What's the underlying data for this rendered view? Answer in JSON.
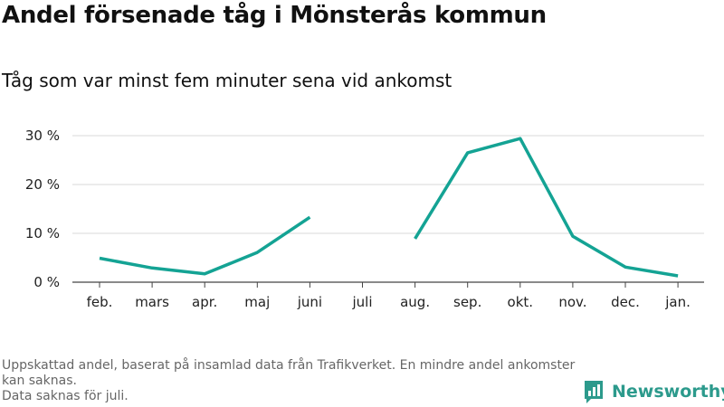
{
  "title": "Andel försenade tåg i Mönsterås kommun",
  "subtitle": "Tåg som var minst fem minuter sena vid ankomst",
  "footer": {
    "line1": "Uppskattad andel, baserat på insamlad data från Trafikverket. En mindre andel ankomster kan saknas.",
    "line2": "Data saknas för juli."
  },
  "brand": {
    "name": "Newsworthy",
    "icon": "newsworthy-logo-icon",
    "color": "#2c9a8c"
  },
  "chart_data": {
    "type": "line",
    "title": "Andel försenade tåg i Mönsterås kommun",
    "subtitle": "Tåg som var minst fem minuter sena vid ankomst",
    "categories": [
      "feb.",
      "mars",
      "apr.",
      "maj",
      "juni",
      "juli",
      "aug.",
      "sep.",
      "okt.",
      "nov.",
      "dec.",
      "jan."
    ],
    "series": [
      {
        "values": [
          4.9,
          2.9,
          1.7,
          6.1,
          13.3,
          null,
          8.9,
          26.5,
          29.4,
          9.4,
          3.1,
          1.3
        ],
        "color": "#14a394"
      }
    ],
    "ylim": [
      0,
      30
    ],
    "yticks": [
      0,
      10,
      20,
      30
    ],
    "ytick_labels": [
      "0 %",
      "10 %",
      "20 %",
      "30 %"
    ],
    "grid": true,
    "legend": "none"
  }
}
